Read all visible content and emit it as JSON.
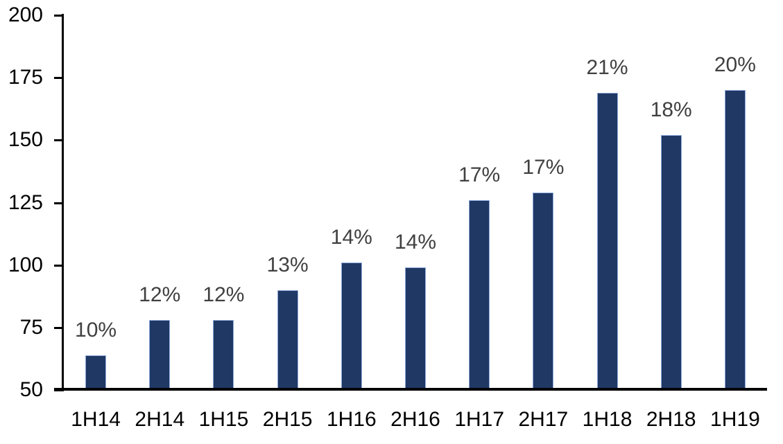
{
  "chart_data": {
    "type": "bar",
    "title": "",
    "xlabel": "",
    "ylabel": "",
    "categories": [
      "1H14",
      "2H14",
      "1H15",
      "2H15",
      "1H16",
      "2H16",
      "1H17",
      "2H17",
      "1H18",
      "2H18",
      "1H19"
    ],
    "values": [
      64,
      78,
      78,
      90,
      101,
      99,
      126,
      129,
      169,
      152,
      170
    ],
    "bar_labels": [
      "10%",
      "12%",
      "12%",
      "13%",
      "14%",
      "14%",
      "17%",
      "17%",
      "21%",
      "18%",
      "20%"
    ],
    "ylim": [
      50,
      200
    ],
    "yticks": [
      200,
      175,
      150,
      125,
      100,
      75,
      50
    ],
    "grid": false,
    "legend_position": "none",
    "colors": {
      "bar_fill": "#1F3864",
      "bar_border": "#8EA9DB",
      "data_label": "#404040",
      "axis_text": "#000000",
      "axis_line": "#000000",
      "background": "#FFFFFF"
    }
  }
}
